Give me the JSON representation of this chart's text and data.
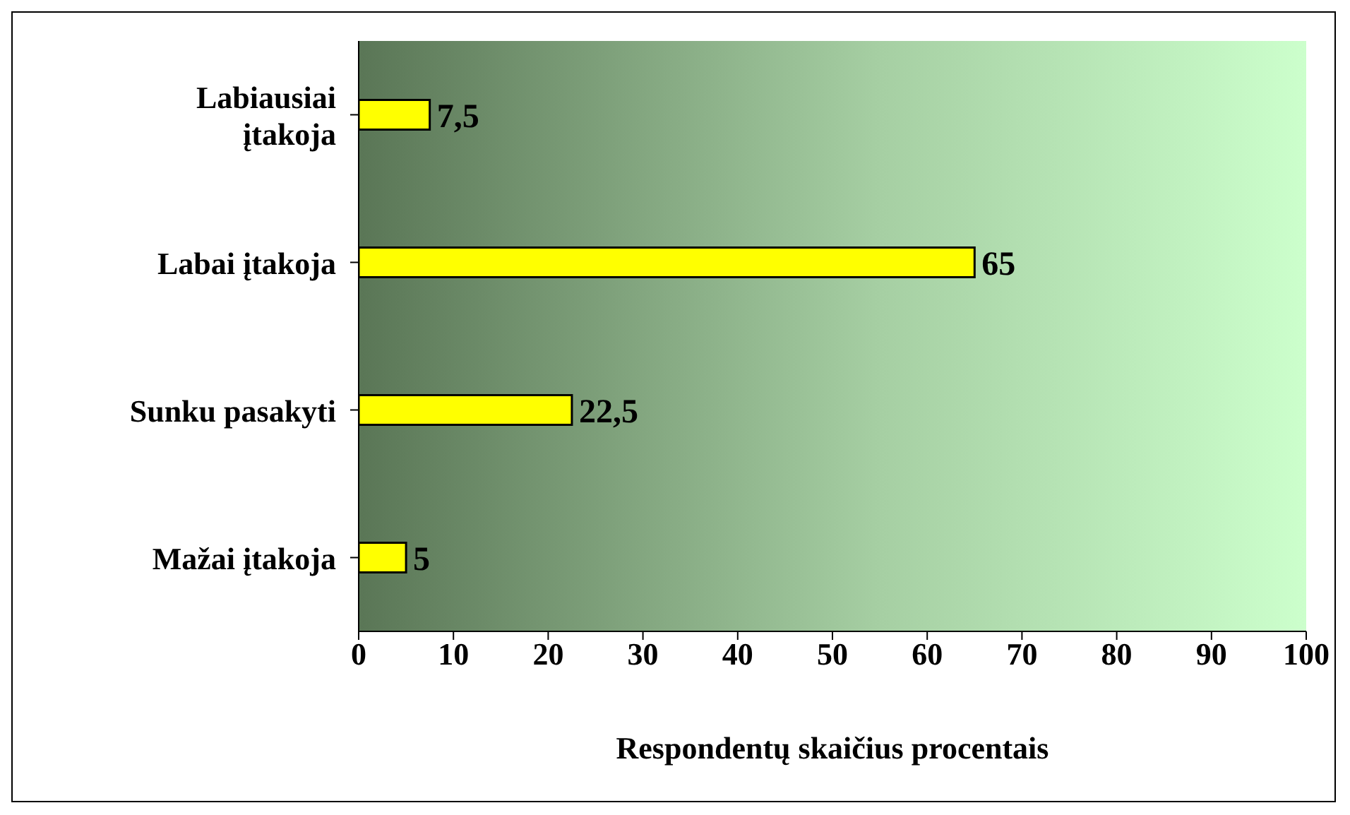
{
  "chart_data": {
    "type": "bar",
    "orientation": "horizontal",
    "xlabel": "Respondentų skaičius procentais",
    "categories": [
      "Labiausiai įtakoja",
      "Labai įtakoja",
      "Sunku pasakyti",
      "Mažai įtakoja"
    ],
    "values": [
      7.5,
      65,
      22.5,
      5
    ],
    "color": "#ffff00",
    "value_labels": [
      "7,5",
      "65",
      "22,5",
      "5"
    ],
    "xlim": [
      0,
      100
    ],
    "xticks": [
      0,
      10,
      20,
      30,
      40,
      50,
      60,
      70,
      80,
      90,
      100
    ],
    "grid": false,
    "legend": false
  }
}
